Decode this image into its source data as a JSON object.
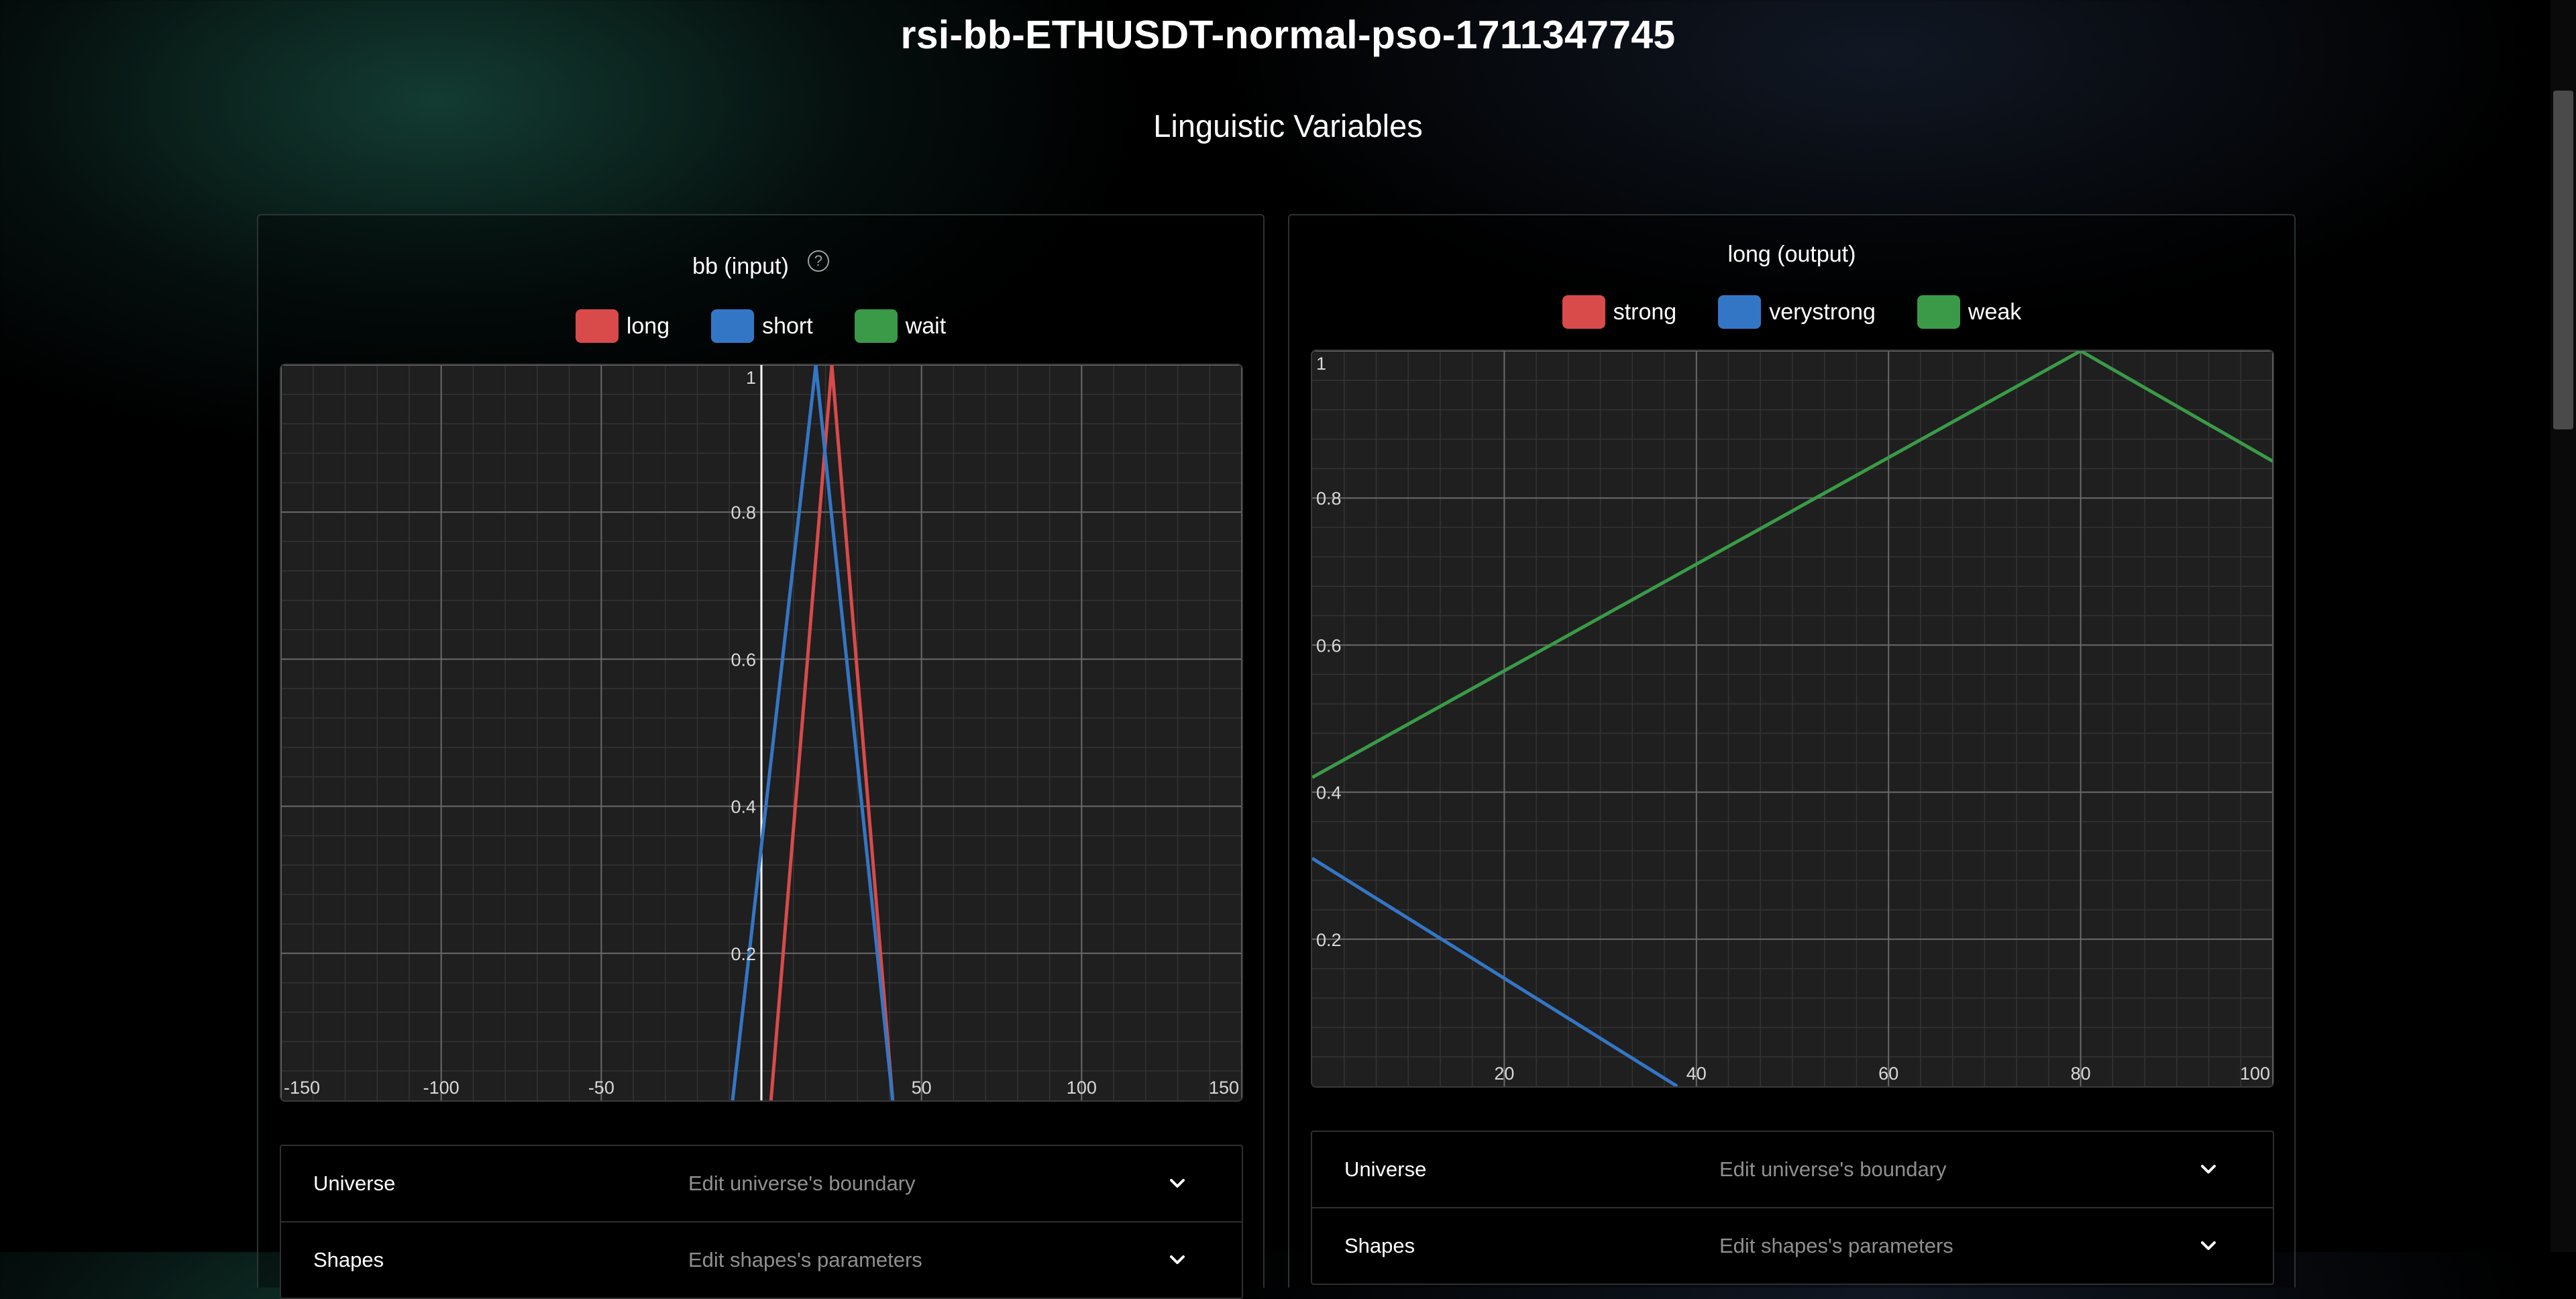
{
  "page": {
    "title": "rsi-bb-ETHUSDT-normal-pso-1711347745",
    "section_title": "Linguistic Variables"
  },
  "cards": [
    {
      "title": "bb (input)",
      "has_help_icon": true,
      "legend": [
        {
          "label": "long",
          "color": "#d94a4a"
        },
        {
          "label": "short",
          "color": "#3476c6"
        },
        {
          "label": "wait",
          "color": "#3a9a48"
        }
      ],
      "accordion": [
        {
          "label": "Universe",
          "description": "Edit universe's boundary",
          "icon": "chevron-down-icon"
        },
        {
          "label": "Shapes",
          "description": "Edit shapes's parameters",
          "icon": "chevron-down-icon"
        }
      ]
    },
    {
      "title": "long (output)",
      "has_help_icon": false,
      "legend": [
        {
          "label": "strong",
          "color": "#d94a4a"
        },
        {
          "label": "verystrong",
          "color": "#3476c6"
        },
        {
          "label": "weak",
          "color": "#3a9a48"
        }
      ],
      "accordion": [
        {
          "label": "Universe",
          "description": "Edit universe's boundary",
          "icon": "chevron-down-icon"
        },
        {
          "label": "Shapes",
          "description": "Edit shapes's parameters",
          "icon": "chevron-down-icon"
        }
      ]
    }
  ],
  "chart_data": [
    {
      "type": "line",
      "xlim": [
        -150,
        150
      ],
      "ylim": [
        0,
        1
      ],
      "x_ticks": [
        -150,
        -100,
        -50,
        50,
        100,
        150
      ],
      "x_tick_labels": [
        "-150",
        "-100",
        "-50",
        "50",
        "100",
        "150"
      ],
      "y_ticks": [
        0.2,
        0.4,
        0.6,
        0.8,
        1
      ],
      "y_tick_labels": [
        "0.2",
        "0.4",
        "0.6",
        "0.8",
        "1"
      ],
      "y_axis_at_x": 0,
      "grid": true,
      "legend_position": "top-center",
      "series": [
        {
          "name": "long",
          "color": "#d94a4a",
          "points": [
            [
              3,
              0
            ],
            [
              22,
              1
            ],
            [
              41,
              0
            ]
          ]
        },
        {
          "name": "short",
          "color": "#3476c6",
          "points": [
            [
              -9,
              0
            ],
            [
              17,
              1
            ],
            [
              41,
              0
            ]
          ]
        },
        {
          "name": "wait",
          "color": "#3a9a48",
          "points": []
        }
      ]
    },
    {
      "type": "line",
      "xlim": [
        0,
        100
      ],
      "ylim": [
        0,
        1
      ],
      "x_ticks": [
        20,
        40,
        60,
        80,
        100
      ],
      "x_tick_labels": [
        "20",
        "40",
        "60",
        "80",
        "100"
      ],
      "y_ticks": [
        0.2,
        0.4,
        0.6,
        0.8,
        1
      ],
      "y_tick_labels": [
        "0.2",
        "0.4",
        "0.6",
        "0.8",
        "1"
      ],
      "y_axis_at_x": 0,
      "grid": true,
      "legend_position": "top-center",
      "series": [
        {
          "name": "strong",
          "color": "#d94a4a",
          "points": []
        },
        {
          "name": "verystrong",
          "color": "#3476c6",
          "points": [
            [
              0,
              0.31
            ],
            [
              38,
              0
            ]
          ]
        },
        {
          "name": "weak",
          "color": "#3a9a48",
          "points": [
            [
              0,
              0.42
            ],
            [
              80,
              1
            ],
            [
              100,
              0.85
            ]
          ]
        }
      ]
    }
  ]
}
